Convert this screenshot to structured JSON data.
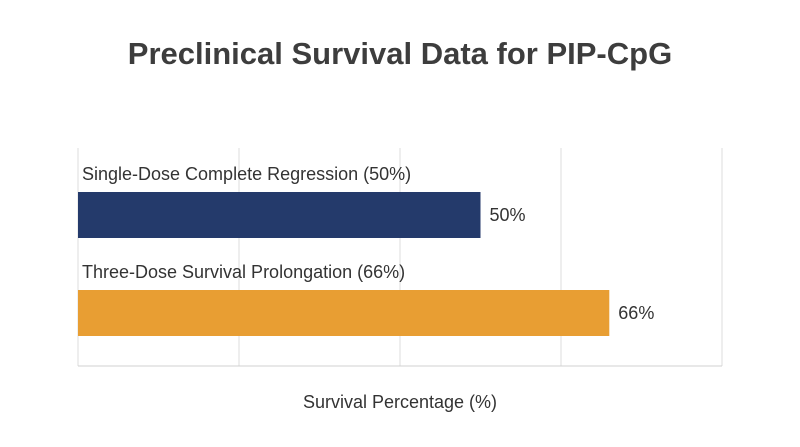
{
  "chart_data": {
    "type": "bar",
    "orientation": "horizontal",
    "title": "Preclinical Survival Data for PIP-CpG",
    "xlabel": "Survival Percentage (%)",
    "ylabel": "",
    "xlim": [
      0,
      80
    ],
    "grid": true,
    "categories": [
      "Single-Dose Complete Regression (50%)",
      "Three-Dose Survival Prolongation (66%)"
    ],
    "values": [
      50,
      66
    ],
    "value_labels": [
      "50%",
      "66%"
    ],
    "colors": [
      "#243a6b",
      "#e89e33"
    ]
  }
}
